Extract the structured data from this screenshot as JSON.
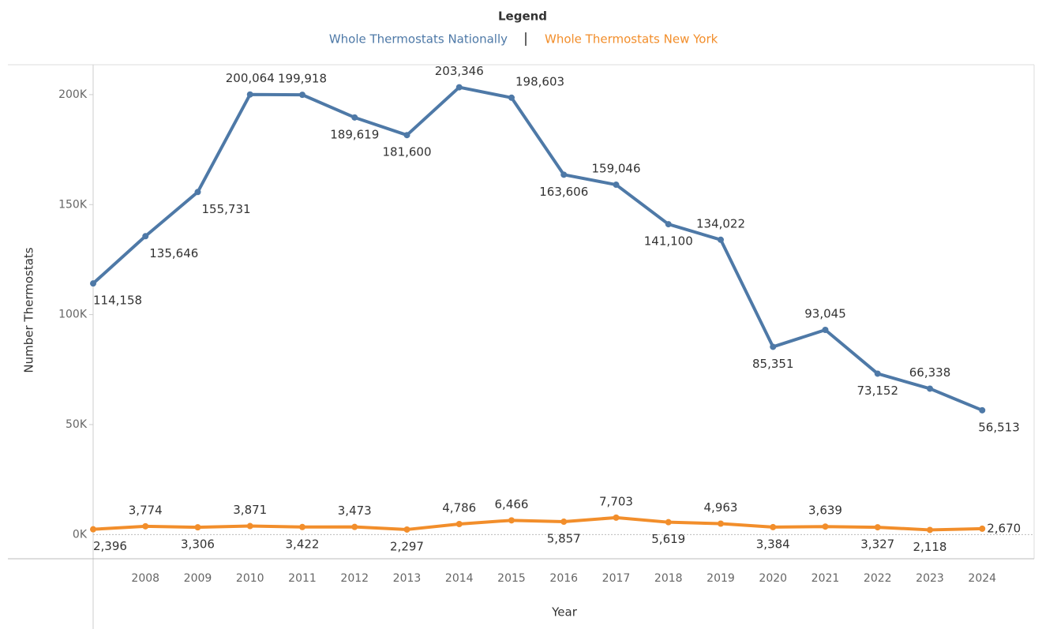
{
  "chart_data": {
    "type": "line",
    "legend_title": "Legend",
    "y_label": "Number Thermostats",
    "x_label": "Year",
    "categories": [
      null,
      "2008",
      "2009",
      "2010",
      "2011",
      "2012",
      "2013",
      "2014",
      "2015",
      "2016",
      "2017",
      "2018",
      "2019",
      "2020",
      "2021",
      "2022",
      "2023",
      "2024"
    ],
    "series": [
      {
        "name": "Whole Thermostats Nationally",
        "color": "#4e79a7",
        "values": [
          114158,
          135646,
          155731,
          200064,
          199918,
          189619,
          181600,
          203346,
          198603,
          163606,
          159046,
          141100,
          134022,
          85351,
          93045,
          73152,
          66338,
          56513
        ],
        "value_labels": [
          "114,158",
          "135,646",
          "155,731",
          "200,064",
          "199,918",
          "189,619",
          "181,600",
          "203,346",
          "198,603",
          "163,606",
          "159,046",
          "141,100",
          "134,022",
          "85,351",
          "93,045",
          "73,152",
          "66,338",
          "56,513"
        ]
      },
      {
        "name": "Whole Thermostats New York",
        "color": "#f28e2b",
        "values": [
          2396,
          3774,
          3306,
          3871,
          3422,
          3473,
          2297,
          4786,
          6466,
          5857,
          7703,
          5619,
          4963,
          3384,
          3639,
          3327,
          2118,
          2670
        ],
        "value_labels": [
          "2,396",
          "3,774",
          "3,306",
          "3,871",
          "3,422",
          "3,473",
          "2,297",
          "4,786",
          "6,466",
          "5,857",
          "7,703",
          "5,619",
          "4,963",
          "3,384",
          "3,639",
          "3,327",
          "2,118",
          "2,670"
        ]
      }
    ],
    "ylim": [
      -11000,
      213600
    ],
    "yticks": [
      {
        "value": 0,
        "label": "0K"
      },
      {
        "value": 50000,
        "label": "50K"
      },
      {
        "value": 100000,
        "label": "100K"
      },
      {
        "value": 150000,
        "label": "150K"
      },
      {
        "value": 200000,
        "label": "200K"
      }
    ]
  }
}
